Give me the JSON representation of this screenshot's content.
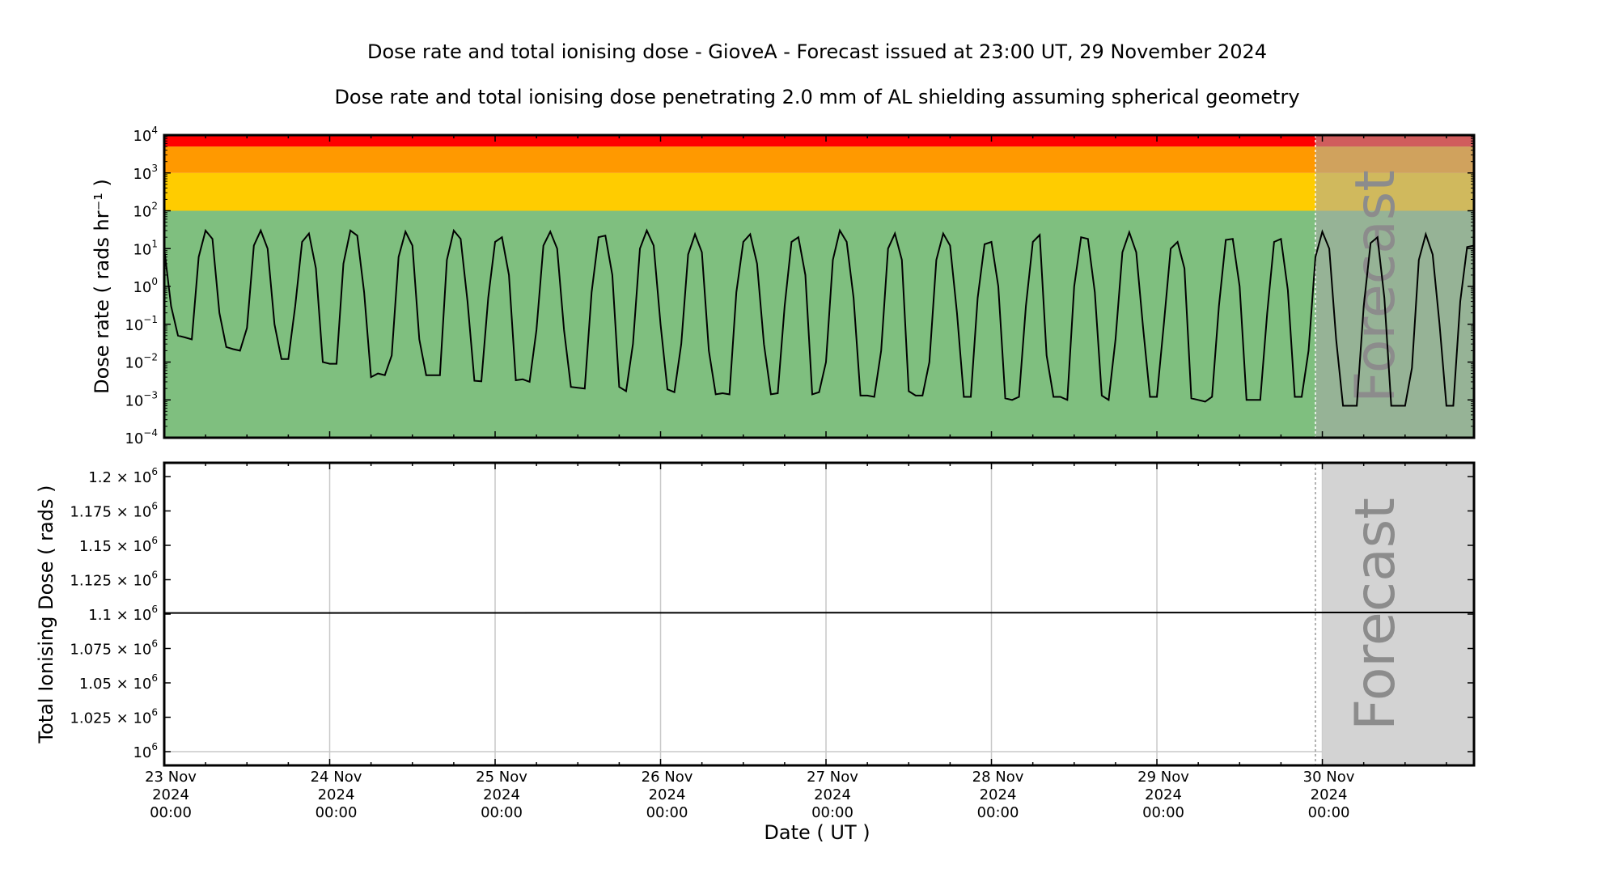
{
  "title": "Dose rate and total ionising dose - GioveA - Forecast issued at 23:00 UT, 29 November 2024",
  "subtitle": "Dose rate and total ionising dose penetrating 2.0 mm of AL shielding assuming spherical geometry",
  "forecast_label": "Forecast",
  "colors": {
    "red": "#ff0000",
    "orange": "#ff9900",
    "yellow": "#ffcc00",
    "green": "#7fbf7f",
    "forecast_overlay": "#aaaaaa",
    "line": "#000000",
    "grid": "#c8c8c8"
  },
  "x_ticks": [
    {
      "day": 0,
      "lines": [
        "23 Nov",
        "2024",
        "00:00"
      ]
    },
    {
      "day": 1,
      "lines": [
        "24 Nov",
        "2024",
        "00:00"
      ]
    },
    {
      "day": 2,
      "lines": [
        "25 Nov",
        "2024",
        "00:00"
      ]
    },
    {
      "day": 3,
      "lines": [
        "26 Nov",
        "2024",
        "00:00"
      ]
    },
    {
      "day": 4,
      "lines": [
        "27 Nov",
        "2024",
        "00:00"
      ]
    },
    {
      "day": 5,
      "lines": [
        "28 Nov",
        "2024",
        "00:00"
      ]
    },
    {
      "day": 6,
      "lines": [
        "29 Nov",
        "2024",
        "00:00"
      ]
    },
    {
      "day": 7,
      "lines": [
        "30 Nov",
        "2024",
        "00:00"
      ]
    }
  ],
  "chart_data": [
    {
      "type": "line",
      "ylabel": "Dose rate ( rads hr⁻¹ )",
      "y_scale": "log",
      "ylim": [
        0.0001,
        10000
      ],
      "xlim": [
        "2024-11-23 00:00",
        "2024-11-30 22:00"
      ],
      "forecast_start": "2024-11-29 23:00",
      "y_ticks": [
        {
          "exp": -4,
          "base": "10",
          "sup": "−4"
        },
        {
          "exp": -3,
          "base": "10",
          "sup": "−3"
        },
        {
          "exp": -2,
          "base": "10",
          "sup": "−2"
        },
        {
          "exp": -1,
          "base": "10",
          "sup": "−1"
        },
        {
          "exp": 0,
          "base": "10",
          "sup": "0"
        },
        {
          "exp": 1,
          "base": "10",
          "sup": "1"
        },
        {
          "exp": 2,
          "base": "10",
          "sup": "2"
        },
        {
          "exp": 3,
          "base": "10",
          "sup": "3"
        },
        {
          "exp": 4,
          "base": "10",
          "sup": "4"
        }
      ],
      "bands": [
        {
          "from": 0.0001,
          "to": 100,
          "color": "#7fbf7f"
        },
        {
          "from": 100,
          "to": 1000,
          "color": "#ffcc00"
        },
        {
          "from": 1000,
          "to": 5000,
          "color": "#ff9900"
        },
        {
          "from": 5000,
          "to": 10000,
          "color": "#ff0000"
        }
      ],
      "series": [
        {
          "x_hours_from": "2024-11-23 00:00",
          "values": [
            10,
            0.3,
            0.05,
            0.045,
            0.04,
            6,
            30,
            18,
            0.2,
            0.025,
            0.022,
            0.02,
            0.08,
            12,
            30,
            10,
            0.1,
            0.012,
            0.012,
            0.3,
            15,
            25,
            3,
            0.01,
            0.009,
            0.009,
            4,
            30,
            22,
            0.7,
            0.004,
            0.005,
            0.0045,
            0.015,
            6,
            28,
            12,
            0.04,
            0.0045,
            0.0045,
            0.0045,
            5,
            30,
            18,
            0.4,
            0.0032,
            0.0031,
            0.5,
            15,
            20,
            2,
            0.0033,
            0.0035,
            0.003,
            0.07,
            12,
            28,
            10,
            0.07,
            0.0022,
            0.0021,
            0.002,
            0.7,
            20,
            22,
            2,
            0.0022,
            0.0017,
            0.03,
            10,
            30,
            12,
            0.1,
            0.0019,
            0.0016,
            0.03,
            7,
            24,
            8,
            0.02,
            0.0014,
            0.0015,
            0.0014,
            0.7,
            15,
            24,
            4,
            0.03,
            0.0014,
            0.0015,
            0.3,
            15,
            20,
            2,
            0.0014,
            0.0016,
            0.01,
            5,
            30,
            15,
            0.5,
            0.0013,
            0.0013,
            0.0012,
            0.02,
            10,
            25,
            5,
            0.0017,
            0.0013,
            0.0013,
            0.01,
            5,
            25,
            12,
            0.2,
            0.0012,
            0.0012,
            0.5,
            13,
            15,
            1,
            0.0011,
            0.001,
            0.0012,
            0.3,
            15,
            23,
            0.015,
            0.0012,
            0.0012,
            0.001,
            1,
            20,
            18,
            0.7,
            0.0013,
            0.001,
            0.04,
            8,
            27,
            8,
            0.08,
            0.0012,
            0.0012,
            0.1,
            10,
            15,
            3,
            0.0011,
            0.001,
            0.0009,
            0.0012,
            0.3,
            17,
            18,
            1,
            0.001,
            0.001,
            0.001,
            0.2,
            15,
            18,
            0.8,
            0.0012,
            0.0012,
            0.02,
            6,
            28,
            10,
            0.04,
            0.0007,
            0.0007,
            0.0007,
            0.3,
            14,
            20,
            0.5,
            0.0007,
            0.0007,
            0.0007,
            0.007,
            5,
            24,
            7,
            0.1,
            0.0007,
            0.0007,
            0.4,
            11,
            12
          ]
        }
      ]
    },
    {
      "type": "line",
      "ylabel": "Total Ionising Dose ( rads )",
      "ylim": [
        990000,
        1210000
      ],
      "xlim": [
        "2024-11-23 00:00",
        "2024-11-30 22:00"
      ],
      "forecast_start": "2024-11-29 23:00",
      "y_ticks": [
        {
          "value": 1000000,
          "mant": "",
          "sup": "6"
        },
        {
          "value": 1025000,
          "mant": "1.025",
          "sup": "6"
        },
        {
          "value": 1050000,
          "mant": "1.05",
          "sup": "6"
        },
        {
          "value": 1075000,
          "mant": "1.075",
          "sup": "6"
        },
        {
          "value": 1100000,
          "mant": "1.1",
          "sup": "6"
        },
        {
          "value": 1125000,
          "mant": "1.125",
          "sup": "6"
        },
        {
          "value": 1150000,
          "mant": "1.15",
          "sup": "6"
        },
        {
          "value": 1175000,
          "mant": "1.175",
          "sup": "6"
        },
        {
          "value": 1200000,
          "mant": "1.2",
          "sup": "6"
        }
      ],
      "series": [
        {
          "x": [
            "2024-11-23 00:00",
            "2024-11-30 22:00"
          ],
          "values": [
            1100800,
            1101200
          ]
        }
      ]
    }
  ],
  "xlabel": "Date ( UT )"
}
